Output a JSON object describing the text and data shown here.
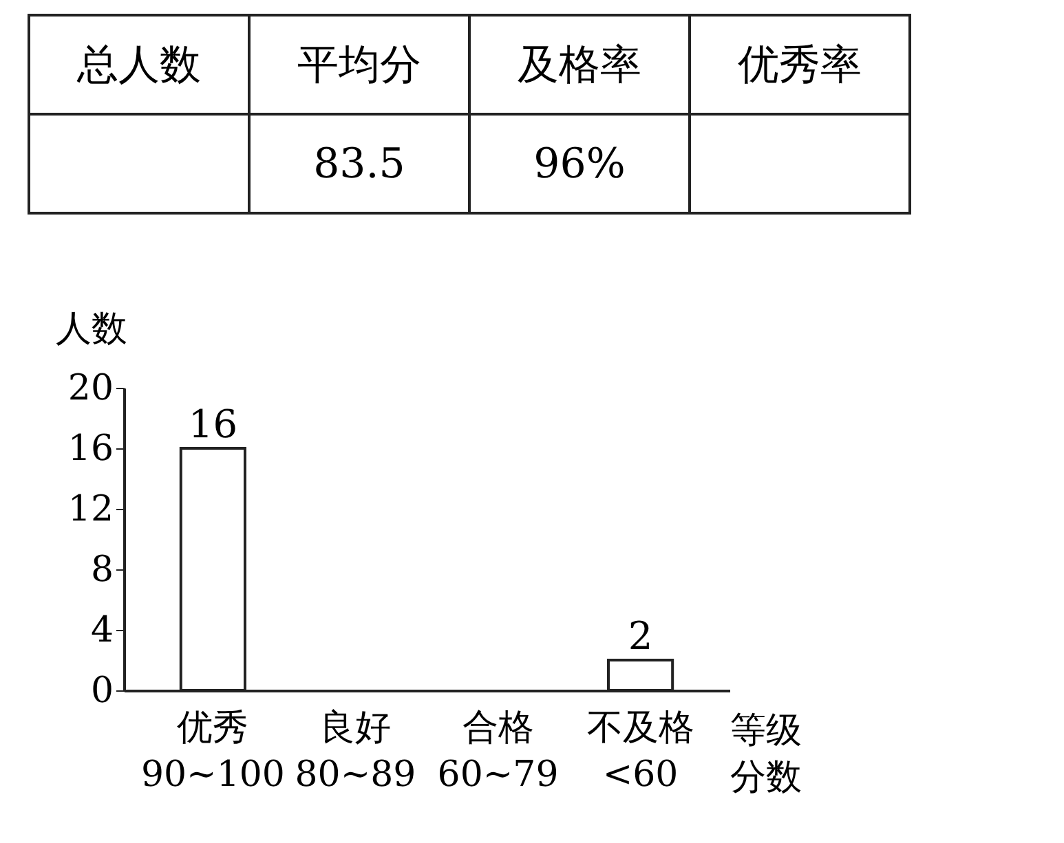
{
  "chart_data": {
    "type": "bar",
    "categories": [
      "优秀\n90~100",
      "良好\n80~89",
      "合格\n60~79",
      "不及格\n<60"
    ],
    "values": [
      16,
      null,
      null,
      2
    ],
    "value_labels": [
      "16",
      null,
      null,
      "2"
    ],
    "color": "#ffffff",
    "ylabel": "人数",
    "xlabel": "等级分数",
    "ylim": [
      0,
      20
    ],
    "yticks": [
      0,
      4,
      8,
      12,
      16,
      20
    ],
    "grid": false,
    "annotations": [
      "总人数",
      "平均分",
      "及格率",
      "优秀率",
      "83.5",
      "96%"
    ]
  }
}
